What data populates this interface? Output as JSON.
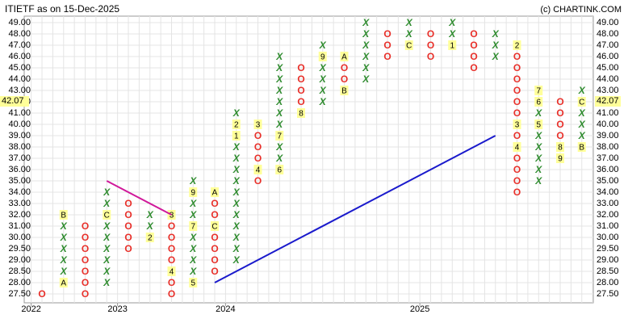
{
  "chart_data": {
    "type": "point-and-figure",
    "title": "ITIETF as on 15-Dec-2025",
    "credit": "(c) CHARTINK.COM",
    "current_price": 42.07,
    "x_color": "#2e8b2e",
    "o_color": "#e8302a",
    "marker_color": "#ffff99",
    "yticks": [
      {
        "value": 49,
        "label": "49.00"
      },
      {
        "value": 48,
        "label": "48.00"
      },
      {
        "value": 47,
        "label": "47.00"
      },
      {
        "value": 46,
        "label": "46.00"
      },
      {
        "value": 45,
        "label": "45.00"
      },
      {
        "value": 44,
        "label": "44.00"
      },
      {
        "value": 43,
        "label": "43.00"
      },
      {
        "value": 42,
        "label": "42.00"
      },
      {
        "value": 41,
        "label": "41.00"
      },
      {
        "value": 40,
        "label": "40.00"
      },
      {
        "value": 39,
        "label": "39.00"
      },
      {
        "value": 38,
        "label": "38.00"
      },
      {
        "value": 37,
        "label": "37.00"
      },
      {
        "value": 36,
        "label": "36.00"
      },
      {
        "value": 35,
        "label": "35.00"
      },
      {
        "value": 34,
        "label": "34.00"
      },
      {
        "value": 33,
        "label": "33.00"
      },
      {
        "value": 32,
        "label": "32.00"
      },
      {
        "value": 31,
        "label": "31.00"
      },
      {
        "value": 30,
        "label": "30.00"
      },
      {
        "value": 29.5,
        "label": "29.50"
      },
      {
        "value": 29,
        "label": "29.00"
      },
      {
        "value": 28.5,
        "label": "28.50"
      },
      {
        "value": 28,
        "label": "28.00"
      },
      {
        "value": 27.5,
        "label": "27.50"
      }
    ],
    "columns": [
      {
        "type": "O",
        "high": 27.5,
        "low": 27.5,
        "months": []
      },
      {
        "type": "X",
        "high": 32,
        "low": 28,
        "months": [
          {
            "price": 28,
            "label": "A"
          },
          {
            "price": 32,
            "label": "B"
          }
        ]
      },
      {
        "type": "O",
        "high": 31,
        "low": 27.5,
        "months": []
      },
      {
        "type": "X",
        "high": 34,
        "low": 28,
        "months": [
          {
            "price": 32,
            "label": "C"
          }
        ]
      },
      {
        "type": "O",
        "high": 33,
        "low": 29.5,
        "months": []
      },
      {
        "type": "X",
        "high": 32,
        "low": 30,
        "months": [
          {
            "price": 30,
            "label": "2"
          }
        ]
      },
      {
        "type": "O",
        "high": 32,
        "low": 27.5,
        "months": [
          {
            "price": 32,
            "label": "3"
          },
          {
            "price": 28.5,
            "label": "4"
          }
        ]
      },
      {
        "type": "X",
        "high": 35,
        "low": 28,
        "months": [
          {
            "price": 28,
            "label": "5"
          },
          {
            "price": 31,
            "label": "7"
          },
          {
            "price": 34,
            "label": "9"
          }
        ]
      },
      {
        "type": "O",
        "high": 34,
        "low": 28.5,
        "months": [
          {
            "price": 34,
            "label": "A"
          },
          {
            "price": 31,
            "label": "C"
          }
        ]
      },
      {
        "type": "X",
        "high": 41,
        "low": 29,
        "months": [
          {
            "price": 39,
            "label": "1"
          },
          {
            "price": 40,
            "label": "2"
          }
        ]
      },
      {
        "type": "O",
        "high": 40,
        "low": 35,
        "months": [
          {
            "price": 40,
            "label": "3"
          },
          {
            "price": 36,
            "label": "4"
          }
        ]
      },
      {
        "type": "X",
        "high": 46,
        "low": 36,
        "months": [
          {
            "price": 36,
            "label": "6"
          },
          {
            "price": 39,
            "label": "7"
          }
        ]
      },
      {
        "type": "O",
        "high": 45,
        "low": 41,
        "months": [
          {
            "price": 41,
            "label": "8"
          }
        ]
      },
      {
        "type": "X",
        "high": 47,
        "low": 42,
        "months": [
          {
            "price": 46,
            "label": "9"
          }
        ]
      },
      {
        "type": "O",
        "high": 46,
        "low": 43,
        "months": [
          {
            "price": 46,
            "label": "A"
          },
          {
            "price": 43,
            "label": "B"
          }
        ]
      },
      {
        "type": "X",
        "high": 49,
        "low": 44,
        "months": []
      },
      {
        "type": "O",
        "high": 48,
        "low": 46,
        "months": []
      },
      {
        "type": "X",
        "high": 49,
        "low": 47,
        "months": [
          {
            "price": 47,
            "label": "C"
          }
        ]
      },
      {
        "type": "O",
        "high": 48,
        "low": 46,
        "months": []
      },
      {
        "type": "X",
        "high": 49,
        "low": 47,
        "months": [
          {
            "price": 47,
            "label": "1"
          }
        ]
      },
      {
        "type": "O",
        "high": 48,
        "low": 45,
        "months": []
      },
      {
        "type": "X",
        "high": 48,
        "low": 46,
        "months": []
      },
      {
        "type": "O",
        "high": 47,
        "low": 34,
        "months": [
          {
            "price": 47,
            "label": "2"
          },
          {
            "price": 40,
            "label": "3"
          },
          {
            "price": 38,
            "label": "4"
          }
        ]
      },
      {
        "type": "X",
        "high": 43,
        "low": 35,
        "months": [
          {
            "price": 40,
            "label": "5"
          },
          {
            "price": 42,
            "label": "6"
          },
          {
            "price": 43,
            "label": "7"
          }
        ]
      },
      {
        "type": "O",
        "high": 42,
        "low": 37,
        "months": [
          {
            "price": 38,
            "label": "8"
          },
          {
            "price": 37,
            "label": "9"
          }
        ]
      },
      {
        "type": "X",
        "high": 43,
        "low": 38,
        "months": [
          {
            "price": 38,
            "label": "B"
          },
          {
            "price": 42,
            "label": "C"
          }
        ]
      }
    ],
    "year_starts": [
      {
        "year": "2022",
        "column": 0
      },
      {
        "year": "2023",
        "column": 4
      },
      {
        "year": "2024",
        "column": 9
      },
      {
        "year": "2025",
        "column": 18
      }
    ],
    "trendlines": [
      {
        "color": "#d0189a",
        "from_column": 3,
        "from_price": 35,
        "to_column": 6,
        "to_price": 32
      },
      {
        "color": "#1a1acc",
        "from_column": 8,
        "from_price": 28,
        "to_column": 21,
        "to_price": 39
      }
    ]
  }
}
